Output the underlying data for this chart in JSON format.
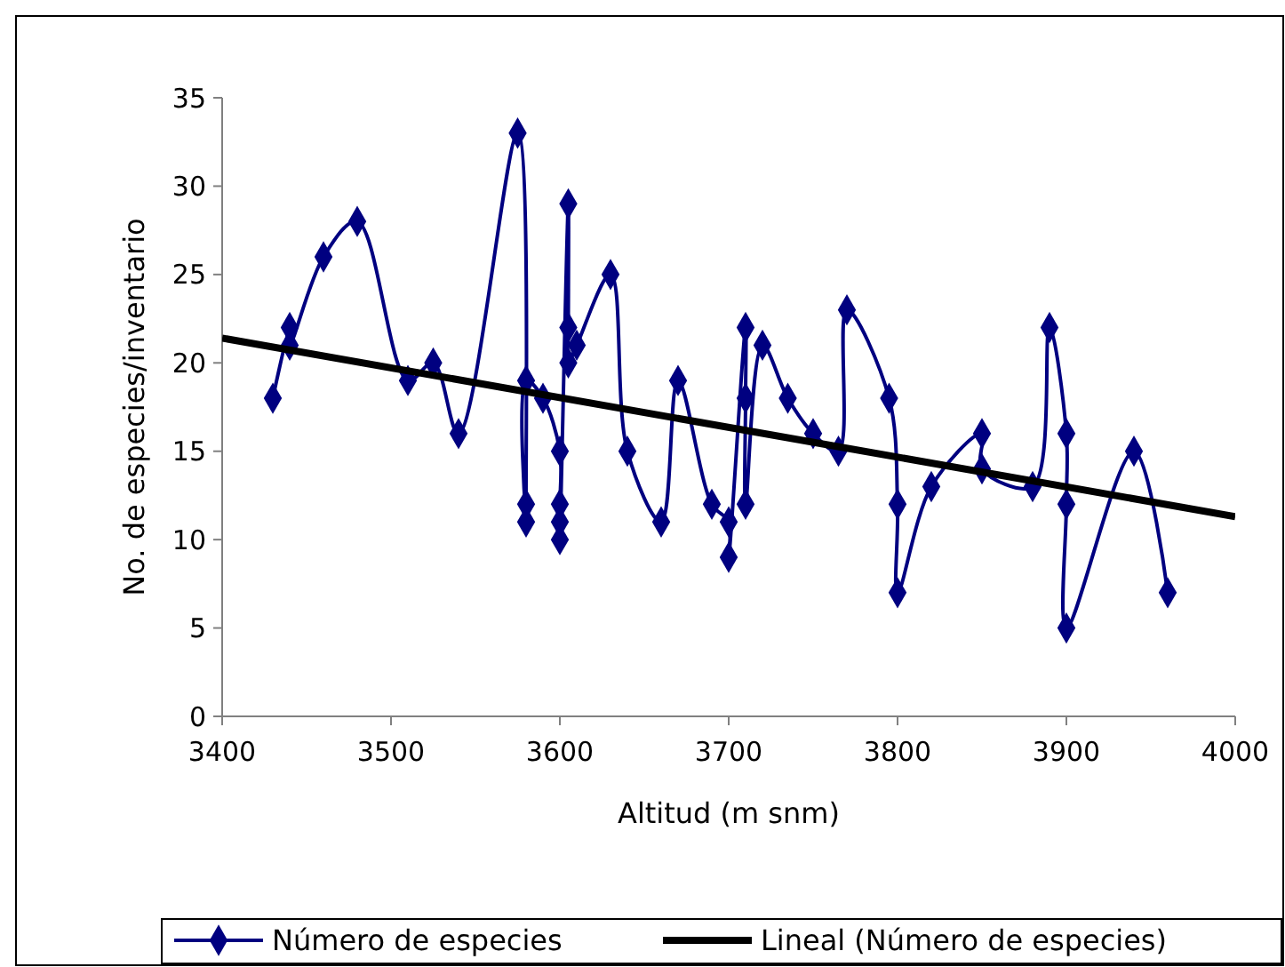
{
  "chart_data": {
    "type": "line",
    "xlabel": "Altitud (m snm)",
    "ylabel": "No. de especies/inventario",
    "xlim": [
      3400,
      4000
    ],
    "xticks": [
      3400,
      3500,
      3600,
      3700,
      3800,
      3900,
      4000
    ],
    "ylim": [
      0,
      35
    ],
    "yticks": [
      0,
      5,
      10,
      15,
      20,
      25,
      30,
      35
    ],
    "grid": false,
    "legend": "bottom",
    "series": [
      {
        "name": "Número de especies",
        "color": "#000080",
        "marker": "diamond",
        "x": [
          3430,
          3440,
          3440,
          3460,
          3480,
          3510,
          3525,
          3540,
          3575,
          3580,
          3580,
          3580,
          3590,
          3600,
          3600,
          3600,
          3600,
          3605,
          3605,
          3605,
          3610,
          3630,
          3640,
          3660,
          3670,
          3690,
          3700,
          3700,
          3710,
          3710,
          3710,
          3720,
          3735,
          3750,
          3765,
          3770,
          3795,
          3800,
          3800,
          3820,
          3850,
          3850,
          3880,
          3890,
          3900,
          3900,
          3900,
          3940,
          3960
        ],
        "values": [
          18,
          22,
          21,
          26,
          28,
          19,
          20,
          16,
          33,
          12,
          11,
          19,
          18,
          15,
          12,
          11,
          10,
          29,
          22,
          20,
          21,
          25,
          15,
          11,
          19,
          12,
          11,
          9,
          22,
          18,
          12,
          21,
          18,
          16,
          15,
          23,
          18,
          12,
          7,
          13,
          16,
          14,
          13,
          22,
          16,
          12,
          5,
          15,
          7
        ]
      },
      {
        "name": "Lineal (Número de especies)",
        "type": "line",
        "color": "#000000",
        "marker": "none",
        "x": [
          3400,
          4000
        ],
        "values": [
          21.4,
          11.3
        ]
      }
    ]
  }
}
